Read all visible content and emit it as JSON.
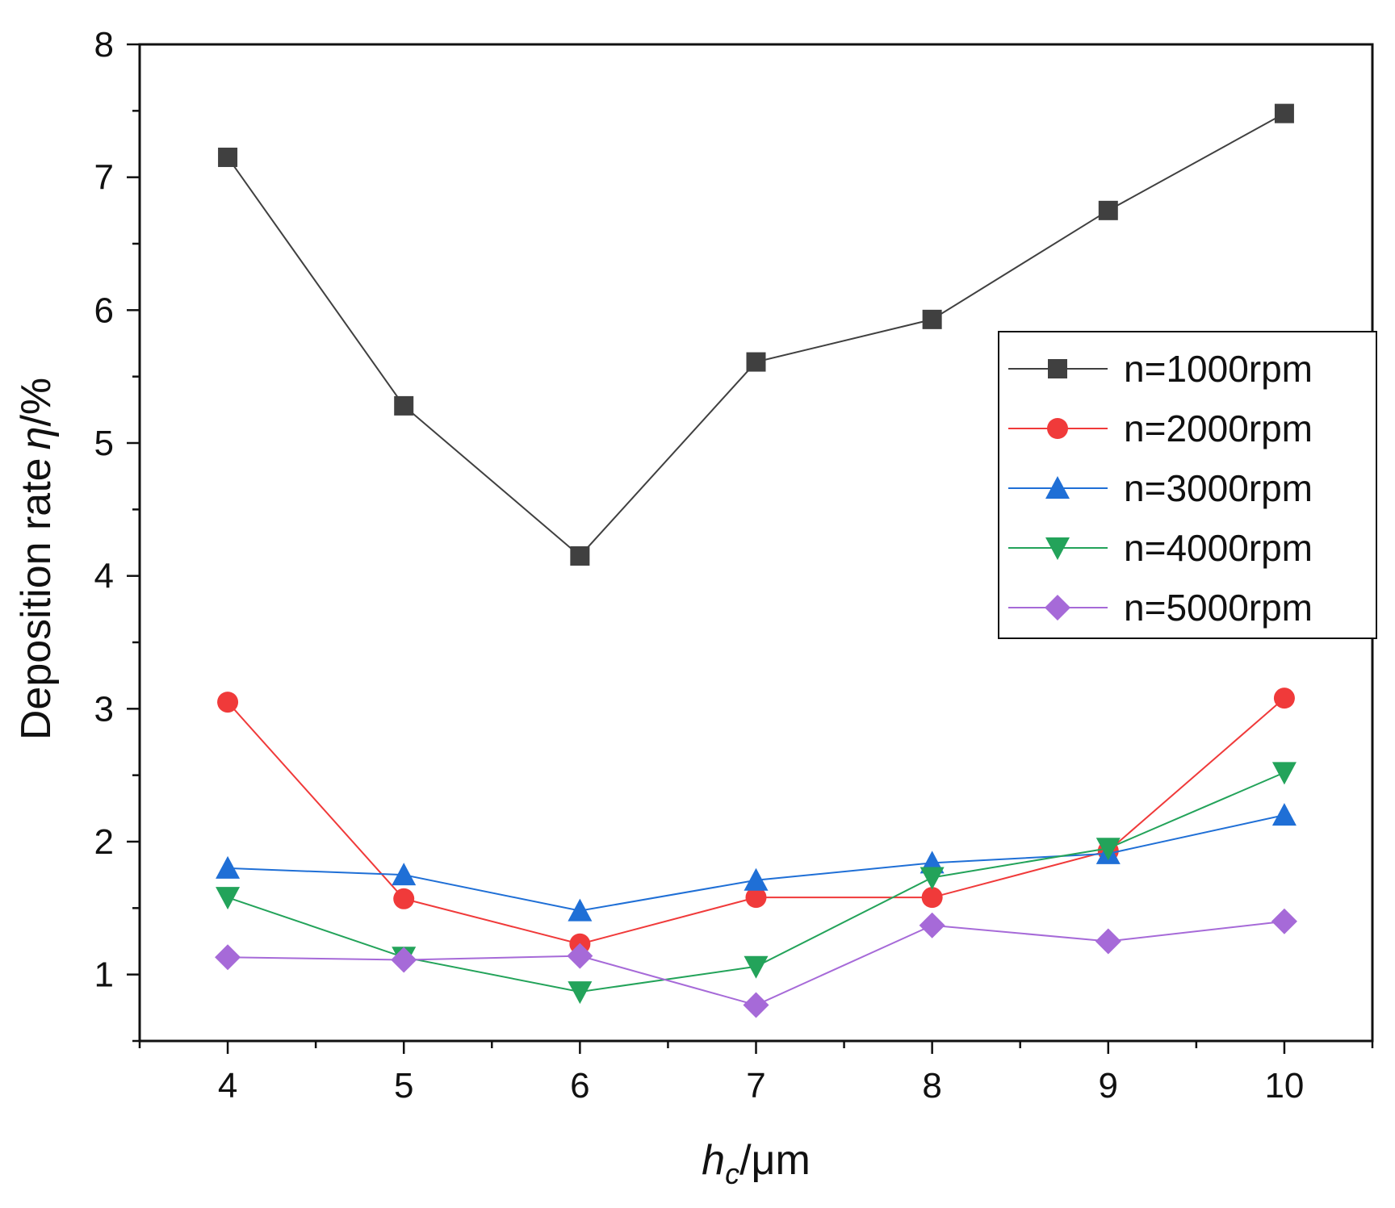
{
  "chart_data": {
    "type": "line",
    "title": "",
    "xlabel": {
      "italic": "h",
      "sub": "c",
      "unit": "/μm"
    },
    "ylabel": {
      "text": "Deposition rate",
      "italic": "η",
      "unit": "/%"
    },
    "xlim": [
      3.5,
      10.5
    ],
    "ylim": [
      0.5,
      8
    ],
    "xticks": [
      "4",
      "5",
      "6",
      "7",
      "8",
      "9",
      "10"
    ],
    "yticks": [
      "1",
      "2",
      "3",
      "4",
      "5",
      "6",
      "7",
      "8"
    ],
    "legend_position": "right",
    "x": [
      4,
      5,
      6,
      7,
      8,
      9,
      10
    ],
    "series": [
      {
        "name": "n=1000rpm",
        "color": "#404040",
        "marker": "square",
        "values": [
          7.15,
          5.28,
          4.15,
          5.61,
          5.93,
          6.75,
          7.48
        ]
      },
      {
        "name": "n=2000rpm",
        "color": "#f03a3a",
        "marker": "circle",
        "values": [
          3.05,
          1.57,
          1.23,
          1.58,
          1.58,
          1.93,
          3.08
        ]
      },
      {
        "name": "n=3000rpm",
        "color": "#1f6fd6",
        "marker": "triangle-up",
        "values": [
          1.8,
          1.75,
          1.48,
          1.71,
          1.84,
          1.91,
          2.2
        ]
      },
      {
        "name": "n=4000rpm",
        "color": "#23a35a",
        "marker": "triangle-down",
        "values": [
          1.58,
          1.13,
          0.87,
          1.06,
          1.73,
          1.95,
          2.52
        ]
      },
      {
        "name": "n=5000rpm",
        "color": "#a66ad8",
        "marker": "diamond",
        "values": [
          1.13,
          1.11,
          1.14,
          0.77,
          1.37,
          1.25,
          1.4
        ]
      }
    ]
  }
}
